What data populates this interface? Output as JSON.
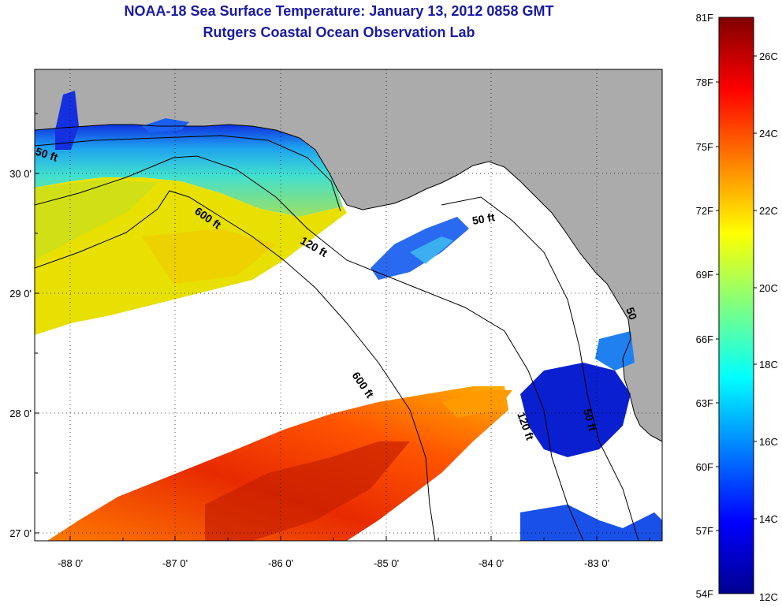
{
  "title": "NOAA-18 Sea Surface Temperature:  January 13, 2012 0858 GMT",
  "subtitle": "Rutgers Coastal Ocean Observation Lab",
  "map": {
    "lon_ticks": [
      "-88 0'",
      "-87 0'",
      "-86 0'",
      "-85 0'",
      "-84 0'",
      "-83 0'"
    ],
    "lat_ticks": [
      "30 0'",
      "29 0'",
      "28 0'",
      "27 0'"
    ],
    "contour_labels": [
      "50 ft",
      "600 ft",
      "120 ft",
      "50 ft",
      "600 ft",
      "120 ft",
      "50 ft",
      "50"
    ],
    "colors": {
      "land": "#ababab",
      "cloud": "#ffffff",
      "coast": "#000000"
    }
  },
  "colorbar": {
    "fahrenheit_labels": [
      "81F",
      "78F",
      "75F",
      "72F",
      "69F",
      "66F",
      "63F",
      "60F",
      "57F",
      "54F"
    ],
    "celsius_labels": [
      "26C",
      "24C",
      "22C",
      "20C",
      "18C",
      "16C",
      "14C",
      "12C"
    ],
    "colormap": [
      "#00008f",
      "#0000ff",
      "#0080ff",
      "#00ffff",
      "#80ff80",
      "#ffff00",
      "#ff8000",
      "#ff0000",
      "#800000"
    ]
  }
}
